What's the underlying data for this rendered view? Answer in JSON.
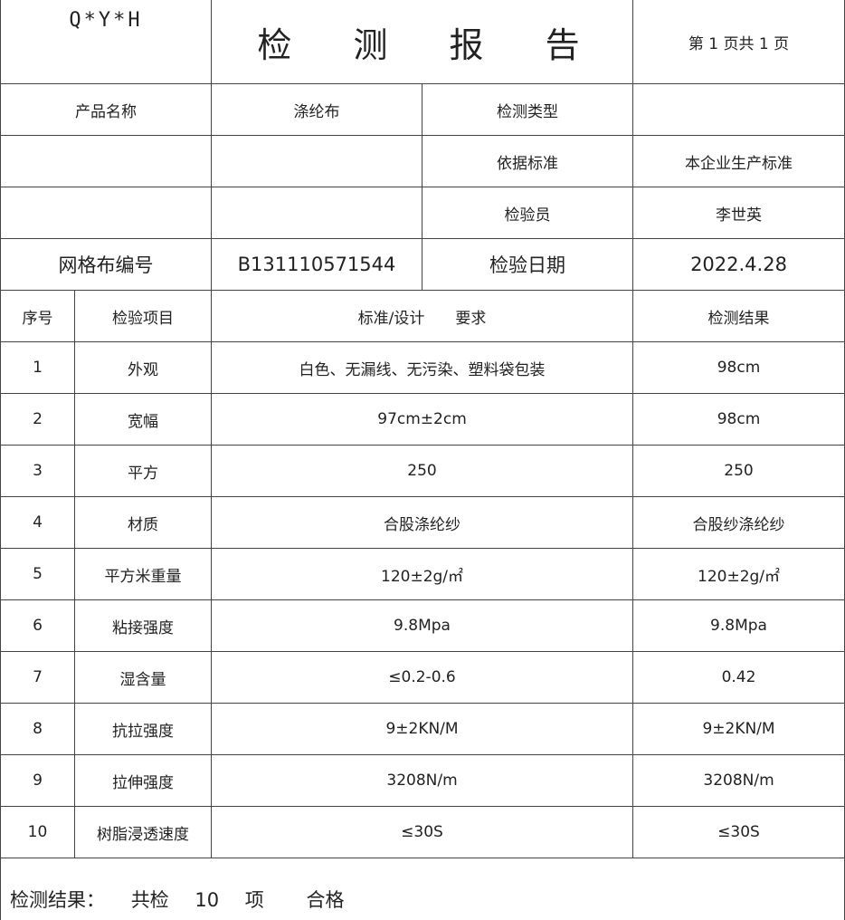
{
  "header": {
    "logo": "Q*Y*H",
    "title": "检 测 报 告",
    "page": "第 1 页共 1 页"
  },
  "info": [
    {
      "label1": "产品名称",
      "value1": "涤纶布",
      "label2": "检测类型",
      "value2": ""
    },
    {
      "label1": "",
      "value1": "",
      "label2": "依据标准",
      "value2": "本企业生产标准"
    },
    {
      "label1": "",
      "value1": "",
      "label2": "检验员",
      "value2": "李世英"
    },
    {
      "label1": "网格布编号",
      "value1": "B131110571544",
      "label2": "检验日期",
      "value2": "2022.4.28"
    }
  ],
  "columns": {
    "no": "序号",
    "item": "检验项目",
    "requirement": "标准/设计　　要求",
    "result": "检测结果"
  },
  "rows": [
    {
      "no": "1",
      "item": "外观",
      "requirement": "白色、无漏线、无污染、塑料袋包装",
      "result": "98cm"
    },
    {
      "no": "2",
      "item": "宽幅",
      "requirement": "97cm±2cm",
      "result": "98cm"
    },
    {
      "no": "3",
      "item": "平方",
      "requirement": "250",
      "result": "250"
    },
    {
      "no": "4",
      "item": "材质",
      "requirement": "合股涤纶纱",
      "result": "合股纱涤纶纱"
    },
    {
      "no": "5",
      "item": "平方米重量",
      "requirement": "120±2g/㎡",
      "result": "120±2g/㎡"
    },
    {
      "no": "6",
      "item": "粘接强度",
      "requirement": "9.8Mpa",
      "result": "9.8Mpa"
    },
    {
      "no": "7",
      "item": "湿含量",
      "requirement": "≤0.2-0.6",
      "result": "0.42"
    },
    {
      "no": "8",
      "item": "抗拉强度",
      "requirement": "9±2KN/M",
      "result": "9±2KN/M"
    },
    {
      "no": "9",
      "item": "拉伸强度",
      "requirement": "3208N/m",
      "result": "3208N/m"
    },
    {
      "no": "10",
      "item": "树脂浸透速度",
      "requirement": "≤30S",
      "result": "≤30S"
    }
  ],
  "conclusion": {
    "label": "检测结果：",
    "prefix": "共检",
    "count": "10",
    "unit": "项",
    "verdict": "合格"
  }
}
